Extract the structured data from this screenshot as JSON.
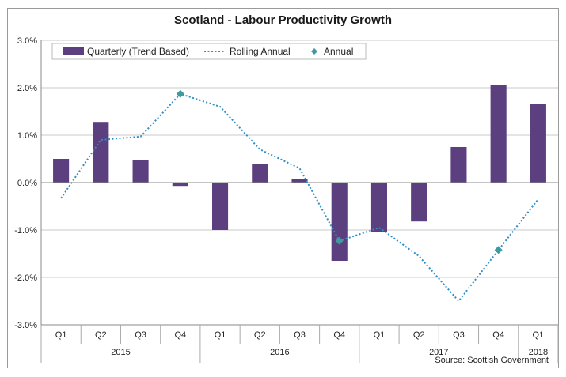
{
  "chart_data": {
    "type": "bar",
    "title": "Scotland - Labour Productivity Growth",
    "source": "Source: Scottish Government",
    "quarters": [
      "Q1",
      "Q2",
      "Q3",
      "Q4",
      "Q1",
      "Q2",
      "Q3",
      "Q4",
      "Q1",
      "Q2",
      "Q3",
      "Q4",
      "Q1"
    ],
    "years": [
      {
        "label": "2015",
        "span": 4
      },
      {
        "label": "2016",
        "span": 4
      },
      {
        "label": "2017",
        "span": 4
      },
      {
        "label": "2018",
        "span": 1
      }
    ],
    "yticks": [
      "3.0%",
      "2.0%",
      "1.0%",
      "0.0%",
      "-1.0%",
      "-2.0%",
      "-3.0%"
    ],
    "ylim": [
      -3.0,
      3.0
    ],
    "grid": true,
    "legend_position": "top",
    "series": [
      {
        "name": "Quarterly (Trend Based)",
        "kind": "bar",
        "color": "#5b3f7e",
        "values": [
          0.5,
          1.28,
          0.47,
          -0.07,
          -1.0,
          0.4,
          0.08,
          -1.65,
          -1.05,
          -0.82,
          0.75,
          2.05,
          1.65
        ]
      },
      {
        "name": "Rolling Annual",
        "kind": "line",
        "color": "#2e8fc9",
        "values": [
          -0.33,
          0.9,
          0.97,
          1.87,
          1.6,
          0.7,
          0.3,
          -1.23,
          -0.95,
          -1.55,
          -2.5,
          -1.42,
          -0.35
        ]
      },
      {
        "name": "Annual",
        "kind": "marker",
        "color": "#3f9aa0",
        "points": [
          {
            "index": 3,
            "value": 1.87
          },
          {
            "index": 7,
            "value": -1.23
          },
          {
            "index": 11,
            "value": -1.42
          }
        ]
      }
    ]
  }
}
